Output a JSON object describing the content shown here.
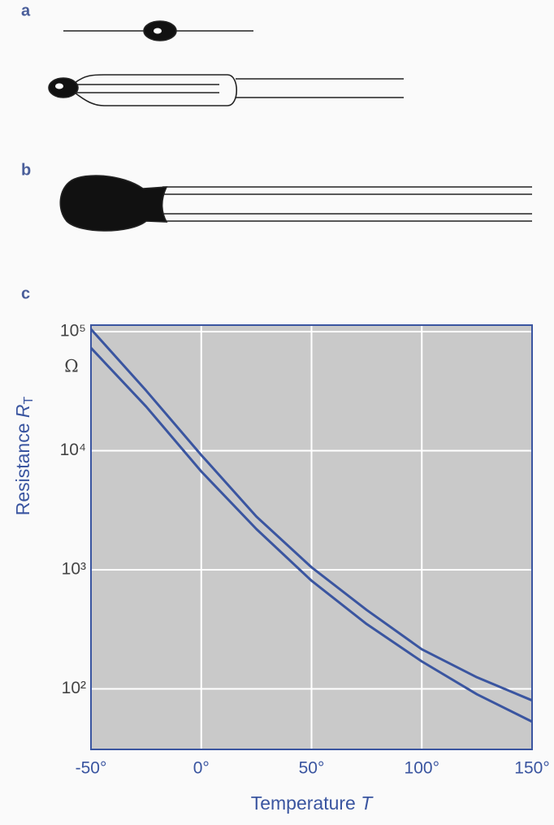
{
  "panel_labels": [
    "a",
    "b",
    "c"
  ],
  "chart_data": {
    "type": "line",
    "ylabel": [
      "Resistance ",
      "R",
      "T"
    ],
    "y_unit": "Ω",
    "xlabel": [
      "Temperature ",
      "T"
    ],
    "x": [
      -50,
      -25,
      0,
      25,
      50,
      75,
      100,
      125,
      150
    ],
    "series": [
      {
        "color": "#3a55a0",
        "values": [
          105000,
          32000,
          9200,
          2800,
          1050,
          460,
          215,
          125,
          80
        ]
      },
      {
        "color": "#3a55a0",
        "values": [
          73000,
          23500,
          6700,
          2200,
          810,
          350,
          170,
          90,
          53
        ]
      }
    ],
    "xlim": [
      -50,
      150
    ],
    "xticks": [
      {
        "value": -50,
        "label": "-50°"
      },
      {
        "value": 0,
        "label": "0°"
      },
      {
        "value": 50,
        "label": "50°"
      },
      {
        "value": 100,
        "label": "100°"
      },
      {
        "value": 150,
        "label": "150°"
      }
    ],
    "ylim": [
      31,
      113500
    ],
    "yticks": [
      {
        "value": 100,
        "label": "10²"
      },
      {
        "value": 1000,
        "label": "10³"
      },
      {
        "value": 10000,
        "label": "10⁴"
      },
      {
        "value": 100000,
        "label": "10⁵"
      }
    ],
    "log_y": true,
    "grid": true,
    "plot_background": "#c9c9c9",
    "axis_color": "#3a55a0"
  }
}
